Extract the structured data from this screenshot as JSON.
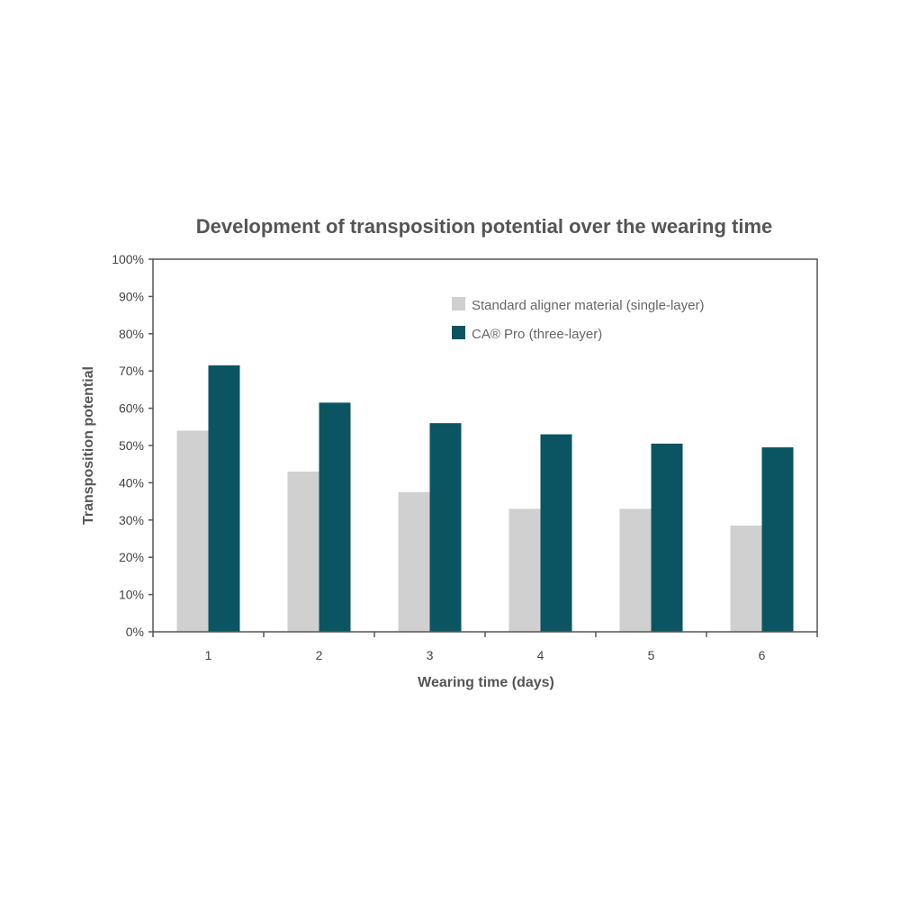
{
  "chart_data": {
    "type": "bar",
    "title": "Development of transposition potential over the wearing time",
    "xlabel": "Wearing time (days)",
    "ylabel": "Transposition potential",
    "categories": [
      "1",
      "2",
      "3",
      "4",
      "5",
      "6"
    ],
    "ylim": [
      0,
      100
    ],
    "yticks": [
      "0%",
      "10%",
      "20%",
      "30%",
      "40%",
      "50%",
      "60%",
      "70%",
      "80%",
      "90%",
      "100%"
    ],
    "grid": false,
    "legend_position": "top-right",
    "series": [
      {
        "name": "Standard aligner material (single-layer)",
        "color": "#d0d0d0",
        "values": [
          54,
          43,
          37.5,
          33,
          33,
          28.5
        ]
      },
      {
        "name": "CA® Pro (three-layer)",
        "color": "#0b5562",
        "values": [
          71.5,
          61.5,
          56,
          53,
          50.5,
          49.5
        ]
      }
    ]
  }
}
